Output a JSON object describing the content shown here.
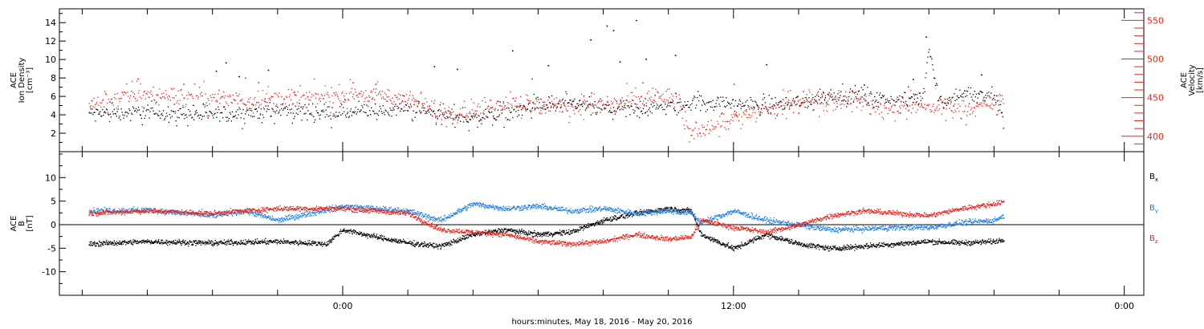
{
  "chart_data": [
    {
      "type": "scatter",
      "panel": "top",
      "left_axis": {
        "label_lines": [
          "ACE",
          "Ion Density",
          "[cm⁻³]"
        ],
        "ticks": [
          2,
          4,
          6,
          8,
          10,
          12,
          14
        ],
        "range": [
          0,
          15.5
        ],
        "color": "#000000"
      },
      "right_axis": {
        "label_lines": [
          "ACE",
          "Velocity",
          "[km/s]"
        ],
        "ticks": [
          400,
          450,
          500,
          550
        ],
        "range": [
          380,
          565
        ],
        "color": "#e8231b"
      },
      "series": [
        {
          "axis": "left",
          "color": "#000000",
          "knots": [
            [
              -7.8,
              4.2
            ],
            [
              -6,
              4.3
            ],
            [
              -4,
              4.0
            ],
            [
              -2,
              4.6
            ],
            [
              0,
              4.2
            ],
            [
              2,
              4.8
            ],
            [
              3,
              4.1
            ],
            [
              4,
              3.6
            ],
            [
              5,
              4.3
            ],
            [
              6,
              5.0
            ],
            [
              7,
              5.2
            ],
            [
              8,
              4.8
            ],
            [
              9,
              4.6
            ],
            [
              10,
              5.0
            ],
            [
              11,
              5.5
            ],
            [
              12,
              5.2
            ],
            [
              13,
              5.0
            ],
            [
              14,
              5.4
            ],
            [
              15,
              6.2
            ],
            [
              16,
              6.0
            ],
            [
              17,
              5.5
            ],
            [
              17.8,
              6.0
            ],
            [
              18,
              11.5
            ],
            [
              18.3,
              5.5
            ],
            [
              19,
              6.2
            ],
            [
              20,
              6.0
            ],
            [
              20.3,
              3.8
            ]
          ],
          "noise": 1.6,
          "bursts": [
            [
              -3.9,
              8.8
            ],
            [
              -3.6,
              9.7
            ],
            [
              -3.2,
              8.2
            ],
            [
              -2.3,
              8.9
            ],
            [
              2.8,
              9.3
            ],
            [
              3.5,
              9.0
            ],
            [
              5.2,
              11.0
            ],
            [
              6.3,
              9.4
            ],
            [
              7.6,
              12.2
            ],
            [
              8.1,
              13.7
            ],
            [
              8.3,
              13.2
            ],
            [
              8.5,
              9.8
            ],
            [
              9.0,
              14.3
            ],
            [
              9.3,
              10.1
            ],
            [
              10.2,
              10.5
            ],
            [
              13.0,
              9.5
            ],
            [
              16.0,
              7.3
            ],
            [
              17.5,
              7.9
            ],
            [
              17.9,
              12.5
            ],
            [
              19.6,
              8.4
            ]
          ]
        },
        {
          "axis": "right",
          "color": "#e8231b",
          "knots": [
            [
              -7.8,
              440
            ],
            [
              -6.5,
              455
            ],
            [
              -5,
              452
            ],
            [
              -3,
              448
            ],
            [
              -1,
              450
            ],
            [
              0.5,
              455
            ],
            [
              2,
              450
            ],
            [
              3,
              430
            ],
            [
              4,
              432
            ],
            [
              5,
              445
            ],
            [
              6,
              440
            ],
            [
              7,
              438
            ],
            [
              8,
              442
            ],
            [
              9,
              445
            ],
            [
              9.5,
              450
            ],
            [
              10.2,
              450
            ],
            [
              10.6,
              407
            ],
            [
              11.5,
              418
            ],
            [
              13,
              435
            ],
            [
              14,
              445
            ],
            [
              15,
              450
            ],
            [
              16,
              445
            ],
            [
              16.5,
              438
            ],
            [
              17,
              440
            ],
            [
              18,
              438
            ],
            [
              19,
              438
            ],
            [
              20,
              440
            ],
            [
              20.3,
              450
            ]
          ],
          "noise": 22,
          "bursts": [
            [
              -6.3,
              475
            ],
            [
              -4.9,
              468
            ],
            [
              -3.0,
              476
            ],
            [
              -2.6,
              470
            ],
            [
              -1.5,
              458
            ],
            [
              0.3,
              470
            ],
            [
              1.0,
              468
            ],
            [
              5.8,
              475
            ],
            [
              9.2,
              470
            ],
            [
              12.0,
              468
            ]
          ]
        }
      ]
    },
    {
      "type": "scatter",
      "panel": "bottom",
      "left_axis": {
        "label_lines": [
          "ACE",
          "B",
          "[nT]"
        ],
        "ticks": [
          -10,
          -5,
          0,
          5,
          10
        ],
        "range": [
          -15,
          15.5
        ],
        "color": "#000000"
      },
      "reference_line": 0,
      "series": [
        {
          "name": "B",
          "subscript": "x",
          "color": "#000000",
          "knots": [
            [
              -7.8,
              -4.0
            ],
            [
              -6,
              -3.5
            ],
            [
              -4,
              -3.8
            ],
            [
              -2,
              -3.5
            ],
            [
              -0.5,
              -4.0
            ],
            [
              0,
              -1.0
            ],
            [
              1,
              -2.5
            ],
            [
              2,
              -3.8
            ],
            [
              3,
              -4.5
            ],
            [
              4,
              -2.0
            ],
            [
              5,
              -1.0
            ],
            [
              6,
              -2.0
            ],
            [
              7,
              -1.5
            ],
            [
              8,
              1.0
            ],
            [
              9,
              2.5
            ],
            [
              10,
              3.5
            ],
            [
              10.7,
              3.0
            ],
            [
              11,
              -2.0
            ],
            [
              12,
              -5.0
            ],
            [
              13,
              -2.0
            ],
            [
              14,
              -4.0
            ],
            [
              15,
              -5.0
            ],
            [
              16,
              -4.5
            ],
            [
              17,
              -4.0
            ],
            [
              18,
              -3.5
            ],
            [
              19,
              -3.8
            ],
            [
              20,
              -3.5
            ],
            [
              20.3,
              -3.0
            ]
          ],
          "noise": 1.0
        },
        {
          "name": "B",
          "subscript": "y",
          "color": "#1f7fe0",
          "knots": [
            [
              -7.8,
              3.0
            ],
            [
              -6,
              3.2
            ],
            [
              -4,
              2.0
            ],
            [
              -3,
              3.0
            ],
            [
              -2,
              1.0
            ],
            [
              -1,
              2.5
            ],
            [
              0,
              4.0
            ],
            [
              1,
              3.5
            ],
            [
              2,
              3.0
            ],
            [
              3,
              1.0
            ],
            [
              4,
              4.5
            ],
            [
              5,
              3.5
            ],
            [
              6,
              4.0
            ],
            [
              7,
              3.0
            ],
            [
              8,
              3.5
            ],
            [
              9,
              2.5
            ],
            [
              10,
              3.0
            ],
            [
              10.7,
              2.5
            ],
            [
              11,
              0.5
            ],
            [
              12,
              3.0
            ],
            [
              13,
              1.0
            ],
            [
              14,
              0
            ],
            [
              15,
              -1.0
            ],
            [
              16,
              -0.8
            ],
            [
              17,
              -0.5
            ],
            [
              18,
              -0.5
            ],
            [
              19,
              0.5
            ],
            [
              20,
              1.0
            ],
            [
              20.3,
              2.0
            ]
          ],
          "noise": 1.1
        },
        {
          "name": "B",
          "subscript": "z",
          "color": "#e8231b",
          "knots": [
            [
              -7.8,
              2.5
            ],
            [
              -6,
              3.0
            ],
            [
              -4,
              2.5
            ],
            [
              -2,
              3.5
            ],
            [
              0,
              3.5
            ],
            [
              1,
              3.0
            ],
            [
              2,
              2.5
            ],
            [
              3,
              -1.0
            ],
            [
              4,
              -1.5
            ],
            [
              5,
              -2.0
            ],
            [
              6,
              -3.5
            ],
            [
              7,
              -4.0
            ],
            [
              8,
              -3.5
            ],
            [
              9,
              -2.0
            ],
            [
              10,
              -3.0
            ],
            [
              10.7,
              -2.5
            ],
            [
              11,
              1.0
            ],
            [
              12,
              -0.5
            ],
            [
              13,
              -1.5
            ],
            [
              14,
              0
            ],
            [
              15,
              2.0
            ],
            [
              16,
              3.0
            ],
            [
              17,
              2.5
            ],
            [
              18,
              2.0
            ],
            [
              19,
              3.5
            ],
            [
              20,
              4.5
            ],
            [
              20.3,
              5.0
            ]
          ],
          "noise": 1.0
        }
      ]
    }
  ],
  "x_axis": {
    "label": "hours:minutes, May 18, 2016 - May 20, 2016",
    "range_hours": [
      -8.7,
      24.6
    ],
    "major_ticks": [
      {
        "hour": 0,
        "label": "0:00"
      },
      {
        "hour": 12,
        "label": "12:00"
      },
      {
        "hour": 24,
        "label": "0:00"
      }
    ],
    "minor_step_hours": 2
  },
  "data_end_hour": 20.3,
  "colors": {
    "black": "#000000",
    "red": "#e8231b",
    "blue": "#1f7fe0"
  }
}
